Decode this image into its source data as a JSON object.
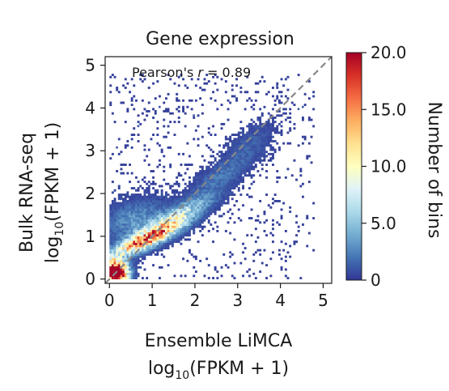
{
  "chart_data": {
    "type": "heatmap",
    "title": "Gene expression",
    "xlabel": {
      "line1": "Ensemble LiMCA",
      "line2": {
        "pre": "log",
        "sub": "10",
        "post": "(FPKM + 1)"
      }
    },
    "ylabel": {
      "line1": "Bulk RNA-seq",
      "line2": {
        "pre": "log",
        "sub": "10",
        "post": "(FPKM + 1)"
      }
    },
    "xlim": [
      -0.1,
      5.2
    ],
    "ylim": [
      -0.1,
      5.2
    ],
    "xticks": [
      0,
      1,
      2,
      3,
      4,
      5
    ],
    "yticks": [
      0,
      1,
      2,
      3,
      4,
      5
    ],
    "annotation": {
      "prefix": "Pearson's ",
      "italic": "r",
      "suffix": " = 0.89"
    },
    "pearson_r": 0.89,
    "identity_line": {
      "from": [
        -0.1,
        -0.1
      ],
      "to": [
        5.2,
        5.2
      ],
      "color": "#888888",
      "style": "dashed"
    },
    "bin_size": 0.05,
    "colorbar": {
      "label": "Number of bins",
      "min": 0,
      "max": 20,
      "ticks": [
        {
          "value": 0,
          "label": "0"
        },
        {
          "value": 5,
          "label": "5.0"
        },
        {
          "value": 10,
          "label": "10.0"
        },
        {
          "value": 15,
          "label": "15.0"
        },
        {
          "value": 20,
          "label": "20.0"
        }
      ],
      "colormap": "RdYlBu_r",
      "colors": [
        "#313695",
        "#4575b4",
        "#74add1",
        "#abd9e9",
        "#e0f3f8",
        "#ffffbf",
        "#fee090",
        "#fdae61",
        "#f46d43",
        "#d73027",
        "#a50026"
      ]
    },
    "density": {
      "description": "binned count of genes per 0.05 x 0.05 cell",
      "components": [
        {
          "center": [
            0.15,
            0.15
          ],
          "spread": [
            0.18,
            0.18
          ],
          "peak": 30
        },
        {
          "center": [
            0.9,
            0.95
          ],
          "spread": [
            0.55,
            0.28
          ],
          "corr": 0.85,
          "peak": 16
        },
        {
          "center": [
            1.6,
            1.5
          ],
          "spread": [
            0.55,
            0.3
          ],
          "corr": 0.85,
          "peak": 6
        },
        {
          "center": [
            2.6,
            2.4
          ],
          "spread": [
            0.5,
            0.35
          ],
          "corr": 0.8,
          "peak": 2
        },
        {
          "center": [
            0.6,
            1.4
          ],
          "spread": [
            0.5,
            0.3
          ],
          "corr": 0.3,
          "peak": 3
        },
        {
          "center": [
            3.3,
            3.2
          ],
          "spread": [
            0.4,
            0.35
          ],
          "corr": 0.7,
          "peak": 1.2
        }
      ],
      "outliers": [
        [
          1.15,
          4.0
        ],
        [
          1.95,
          3.8
        ],
        [
          0.65,
          3.55
        ],
        [
          0.15,
          3.05
        ],
        [
          4.5,
          4.0
        ],
        [
          4.4,
          3.95
        ],
        [
          3.9,
          4.5
        ]
      ]
    }
  }
}
